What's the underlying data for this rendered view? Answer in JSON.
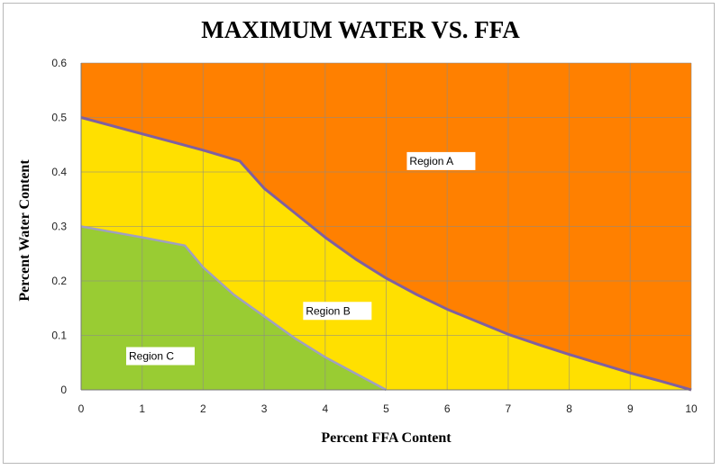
{
  "chart_data": {
    "type": "area",
    "title": "MAXIMUM WATER VS. FFA",
    "xlabel": "Percent FFA Content",
    "ylabel": "Percent Water Content",
    "xlim": [
      0,
      10
    ],
    "ylim": [
      0,
      0.6
    ],
    "xticks": [
      "0",
      "1",
      "2",
      "3",
      "4",
      "5",
      "6",
      "7",
      "8",
      "9",
      "10"
    ],
    "yticks": [
      "0",
      "0.1",
      "0.2",
      "0.3",
      "0.4",
      "0.5",
      "0.6"
    ],
    "grid": true,
    "colors": {
      "region_a": "#FF8000",
      "region_b": "#FFE000",
      "region_c": "#99CC33",
      "upper_boundary": "#8060A0",
      "lower_boundary": "#A0A0C0"
    },
    "boundaries": [
      {
        "id": "upper",
        "x": [
          0,
          0.5,
          1,
          1.5,
          2,
          2.6,
          3,
          3.5,
          4,
          4.5,
          5,
          5.5,
          6,
          6.5,
          7,
          7.5,
          8,
          8.5,
          9,
          9.5,
          10
        ],
        "y": [
          0.5,
          0.485,
          0.47,
          0.455,
          0.44,
          0.42,
          0.37,
          0.325,
          0.28,
          0.24,
          0.205,
          0.175,
          0.148,
          0.125,
          0.102,
          0.083,
          0.065,
          0.048,
          0.031,
          0.016,
          0.0
        ]
      },
      {
        "id": "lower",
        "x": [
          0,
          0.5,
          1,
          1.7,
          2,
          2.5,
          3,
          3.5,
          4,
          4.5,
          5
        ],
        "y": [
          0.3,
          0.29,
          0.28,
          0.265,
          0.225,
          0.175,
          0.135,
          0.095,
          0.06,
          0.03,
          0.0
        ]
      }
    ],
    "regions": [
      {
        "label": "Region A",
        "x": 5.9,
        "y": 0.42
      },
      {
        "label": "Region B",
        "x": 4.2,
        "y": 0.145
      },
      {
        "label": "Region C",
        "x": 1.3,
        "y": 0.062
      }
    ]
  }
}
